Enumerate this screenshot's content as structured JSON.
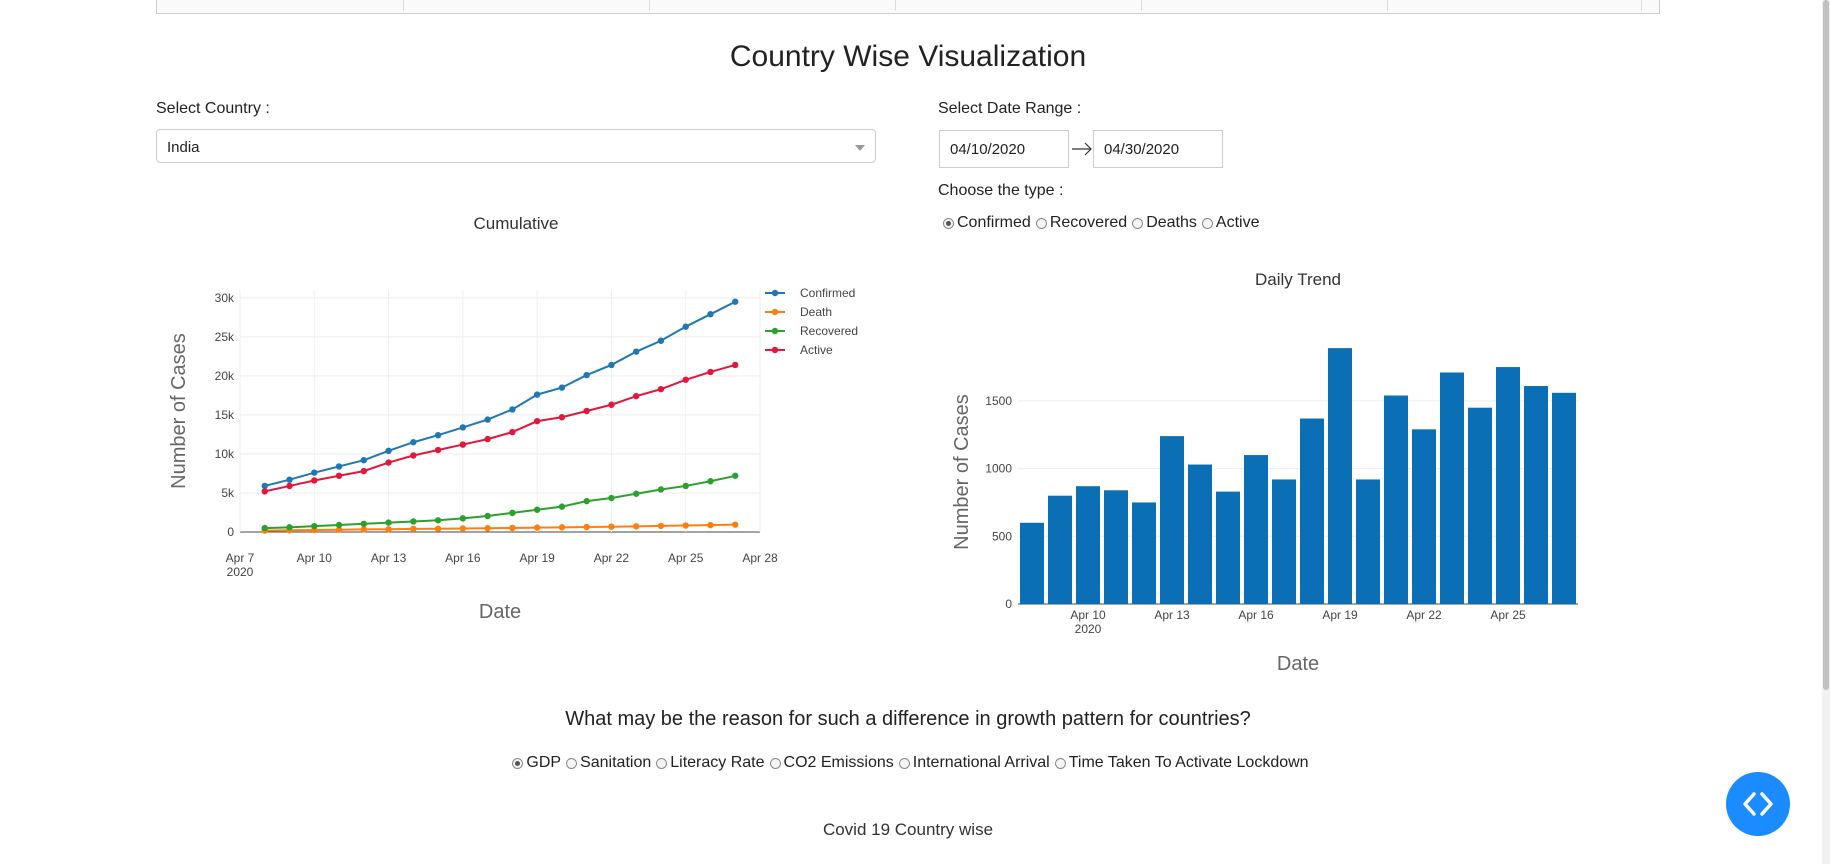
{
  "section": {
    "title": "Country Wise Visualization"
  },
  "country": {
    "label": "Select Country :",
    "value": "India"
  },
  "date_range": {
    "label": "Select Date Range :",
    "start": "04/10/2020",
    "end": "04/30/2020"
  },
  "type": {
    "label": "Choose the type :",
    "options": [
      "Confirmed",
      "Recovered",
      "Deaths",
      "Active"
    ],
    "selected": "Confirmed"
  },
  "question": {
    "text": "What may be the reason for such a difference in growth pattern for countries?",
    "options": [
      "GDP",
      "Sanitation",
      "Literacy Rate",
      "CO2 Emissions",
      "International Arrival",
      "Time Taken To Activate Lockdown"
    ],
    "selected": "GDP"
  },
  "footer": {
    "title": "Covid 19 Country wise"
  },
  "colors": {
    "confirmed": "#1f77b4",
    "death": "#ff7f0e",
    "recovered": "#2ca02c",
    "active": "#e3173c",
    "bar": "#0a6fb4",
    "fab": "#1a8cff"
  },
  "icons": {
    "fab": "code-brackets-icon",
    "dropdown": "chevron-down-icon",
    "date_arrow": "long-arrow-right-icon"
  },
  "chart_data": [
    {
      "type": "line",
      "title": "Cumulative",
      "xlabel": "Date",
      "ylabel": "Number of Cases",
      "x": [
        "2020-04-08",
        "2020-04-09",
        "2020-04-10",
        "2020-04-11",
        "2020-04-12",
        "2020-04-13",
        "2020-04-14",
        "2020-04-15",
        "2020-04-16",
        "2020-04-17",
        "2020-04-18",
        "2020-04-19",
        "2020-04-20",
        "2020-04-21",
        "2020-04-22",
        "2020-04-23",
        "2020-04-24",
        "2020-04-25",
        "2020-04-26",
        "2020-04-27"
      ],
      "xticks": [
        "Apr 7\n2020",
        "Apr 10",
        "Apr 13",
        "Apr 16",
        "Apr 19",
        "Apr 22",
        "Apr 25",
        "Apr 28"
      ],
      "yticks": [
        "0",
        "5k",
        "10k",
        "15k",
        "20k",
        "25k",
        "30k"
      ],
      "ylim": [
        0,
        30000
      ],
      "legend_position": "top-right",
      "grid": true,
      "series": [
        {
          "name": "Confirmed",
          "values": [
            5900,
            6700,
            7600,
            8400,
            9200,
            10400,
            11500,
            12400,
            13400,
            14400,
            15700,
            17600,
            18500,
            20100,
            21400,
            23100,
            24500,
            26300,
            27900,
            29500
          ]
        },
        {
          "name": "Death",
          "values": [
            180,
            220,
            250,
            290,
            330,
            350,
            400,
            420,
            450,
            480,
            520,
            560,
            600,
            640,
            680,
            720,
            780,
            830,
            880,
            940
          ]
        },
        {
          "name": "Recovered",
          "values": [
            500,
            600,
            750,
            900,
            1050,
            1200,
            1350,
            1500,
            1750,
            2050,
            2450,
            2850,
            3250,
            3950,
            4350,
            4900,
            5450,
            5900,
            6500,
            7200
          ]
        },
        {
          "name": "Active",
          "values": [
            5200,
            5900,
            6600,
            7200,
            7800,
            8900,
            9800,
            10500,
            11200,
            11900,
            12800,
            14200,
            14700,
            15500,
            16300,
            17400,
            18300,
            19500,
            20500,
            21400
          ]
        }
      ]
    },
    {
      "type": "bar",
      "title": "Daily Trend",
      "xlabel": "Date",
      "ylabel": "Number of Cases",
      "x": [
        "2020-04-08",
        "2020-04-09",
        "2020-04-10",
        "2020-04-11",
        "2020-04-12",
        "2020-04-13",
        "2020-04-14",
        "2020-04-15",
        "2020-04-16",
        "2020-04-17",
        "2020-04-18",
        "2020-04-19",
        "2020-04-20",
        "2020-04-21",
        "2020-04-22",
        "2020-04-23",
        "2020-04-24",
        "2020-04-25",
        "2020-04-26",
        "2020-04-27"
      ],
      "xticks": [
        "Apr 10\n2020",
        "Apr 13",
        "Apr 16",
        "Apr 19",
        "Apr 22",
        "Apr 25"
      ],
      "yticks": [
        "0",
        "500",
        "1000",
        "1500"
      ],
      "ylim": [
        0,
        1950
      ],
      "grid": true,
      "values": [
        600,
        800,
        870,
        840,
        750,
        1240,
        1030,
        830,
        1100,
        920,
        1370,
        1890,
        920,
        1540,
        1290,
        1710,
        1450,
        1750,
        1610,
        1560
      ]
    }
  ]
}
